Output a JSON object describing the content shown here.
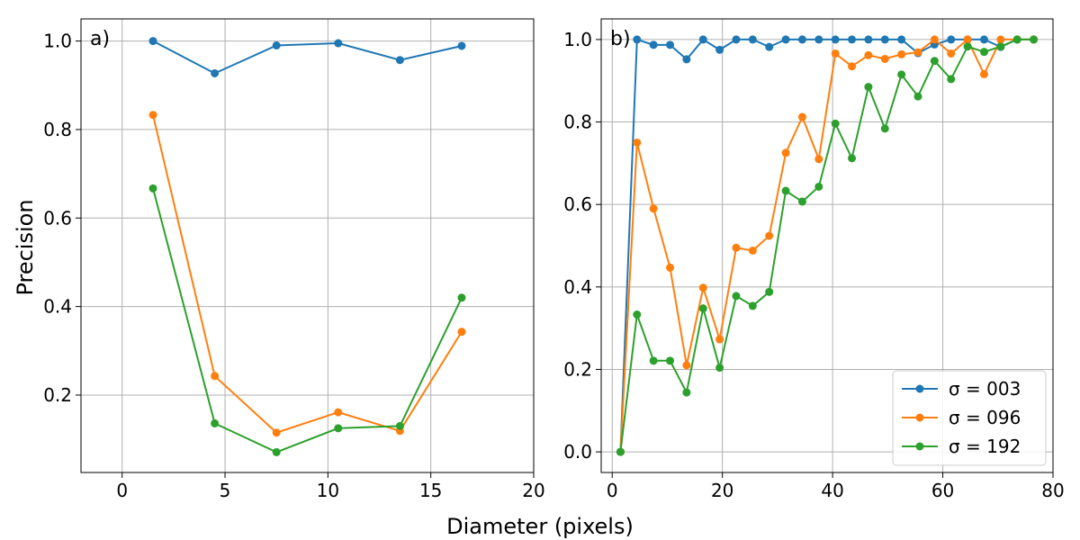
{
  "figure": {
    "xlabel": "Diameter (pixels)",
    "ylabel": "Precision"
  },
  "chart_data": [
    {
      "type": "line",
      "panel_label": "a)",
      "xlabel": "Diameter (pixels)",
      "ylabel": "Precision",
      "xlim": [
        -2,
        20
      ],
      "ylim": [
        0.025,
        1.05
      ],
      "xticks": [
        0,
        5,
        10,
        15,
        20
      ],
      "yticks": [
        0.2,
        0.4,
        0.6,
        0.8,
        1.0
      ],
      "grid": true,
      "x": [
        1.5,
        4.5,
        7.5,
        10.5,
        13.5,
        16.5
      ],
      "series": [
        {
          "name": "σ = 003",
          "color": "#1f77b4",
          "values": [
            1.0,
            0.927,
            0.99,
            0.995,
            0.957,
            0.989
          ]
        },
        {
          "name": "σ = 096",
          "color": "#ff7f0e",
          "values": [
            0.833,
            0.243,
            0.115,
            0.161,
            0.119,
            0.343
          ]
        },
        {
          "name": "σ = 192",
          "color": "#2ca02c",
          "values": [
            0.667,
            0.136,
            0.071,
            0.125,
            0.13,
            0.42
          ]
        }
      ]
    },
    {
      "type": "line",
      "panel_label": "b)",
      "xlabel": "Diameter (pixels)",
      "ylabel": "",
      "xlim": [
        -2,
        80
      ],
      "ylim": [
        -0.05,
        1.05
      ],
      "xticks": [
        0,
        20,
        40,
        60,
        80
      ],
      "yticks": [
        0.0,
        0.2,
        0.4,
        0.6,
        0.8,
        1.0
      ],
      "grid": true,
      "legend_position": "lower-right",
      "x": [
        1.5,
        4.5,
        7.5,
        10.5,
        13.5,
        16.5,
        19.5,
        22.5,
        25.5,
        28.5,
        31.5,
        34.5,
        37.5,
        40.5,
        43.5,
        46.5,
        49.5,
        52.5,
        55.5,
        58.5,
        61.5,
        64.5,
        67.5,
        70.5,
        73.5,
        76.5
      ],
      "series": [
        {
          "name": "σ = 003",
          "color": "#1f77b4",
          "values": [
            0.0,
            1.0,
            0.987,
            0.987,
            0.952,
            1.0,
            0.975,
            1.0,
            1.0,
            0.982,
            1.0,
            1.0,
            1.0,
            1.0,
            1.0,
            1.0,
            1.0,
            1.0,
            0.967,
            0.988,
            1.0,
            1.0,
            1.0,
            0.982,
            1.0,
            1.0
          ]
        },
        {
          "name": "σ = 096",
          "color": "#ff7f0e",
          "values": [
            0.0,
            0.75,
            0.59,
            0.447,
            0.21,
            0.398,
            0.273,
            0.495,
            0.488,
            0.524,
            0.725,
            0.812,
            0.71,
            0.966,
            0.935,
            0.962,
            0.953,
            0.964,
            0.969,
            1.0,
            0.966,
            1.0,
            0.916,
            1.0,
            1.0,
            1.0
          ]
        },
        {
          "name": "σ = 192",
          "color": "#2ca02c",
          "values": [
            0.0,
            0.333,
            0.221,
            0.221,
            0.144,
            0.348,
            0.204,
            0.378,
            0.354,
            0.388,
            0.633,
            0.607,
            0.643,
            0.796,
            0.712,
            0.885,
            0.784,
            0.915,
            0.862,
            0.948,
            0.904,
            0.983,
            0.97,
            0.983,
            1.0,
            1.0
          ]
        }
      ]
    }
  ]
}
